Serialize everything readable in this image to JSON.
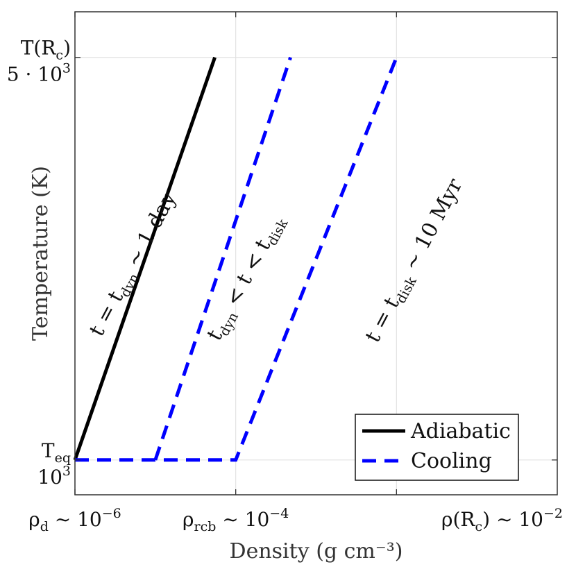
{
  "chart_data": {
    "type": "line",
    "xscale": "log",
    "yscale": "log",
    "xlabel": "Density (g cm⁻³)",
    "ylabel": "Temperature (K)",
    "xlim": [
      1e-06,
      1
    ],
    "ylim": [
      870,
      6000
    ],
    "grid": true,
    "legend_position": "bottom-right",
    "x_ticks": [
      {
        "value": 1e-06,
        "main": "ρ",
        "sub": "d",
        "rest": " ∼ 10",
        "sup": "−6"
      },
      {
        "value": 0.0001,
        "main": "ρ",
        "sub": "rcb",
        "rest": " ∼ 10",
        "sup": "−4"
      },
      {
        "value": 0.01,
        "main": "ρ(R",
        "sub": "c",
        "rest": ") ∼ 10",
        "sup": "−2"
      }
    ],
    "y_ticks": [
      {
        "value": 5000,
        "top_main": "T(R",
        "top_sub": "c",
        "top_rest": ")",
        "bottom": "5 · 10",
        "bottom_sup": "3"
      },
      {
        "value": 1000,
        "top_main": "T",
        "top_sub": "eq",
        "top_rest": "",
        "bottom": "10",
        "bottom_sup": "3"
      }
    ],
    "series": [
      {
        "name": "Adiabatic",
        "color": "#000000",
        "style": "solid",
        "x": [
          1e-06,
          5.5e-05
        ],
        "y": [
          1000,
          5000
        ]
      },
      {
        "name": "Cooling",
        "color": "#0000ff",
        "style": "dashed",
        "x": [
          1e-06,
          1e-05,
          0.0001,
          0.01
        ],
        "y": [
          1000,
          1000,
          1000,
          5000
        ],
        "x_second": [
          1e-05,
          0.00048
        ],
        "y_second": [
          1000,
          5000
        ]
      }
    ],
    "annotations": [
      {
        "id": "t-dyn",
        "parts": [
          [
            "t = t",
            ""
          ],
          [
            "dyn",
            "sub"
          ],
          [
            " ∼ 1 day",
            ""
          ]
        ]
      },
      {
        "id": "t-mid",
        "parts": [
          [
            "t",
            ""
          ],
          [
            "dyn",
            "sub"
          ],
          [
            " < t < t",
            ""
          ],
          [
            "disk",
            "sub"
          ]
        ]
      },
      {
        "id": "t-disk",
        "parts": [
          [
            "t = t",
            ""
          ],
          [
            "disk",
            "sub"
          ],
          [
            " ∼ 10 Myr",
            ""
          ]
        ]
      }
    ],
    "legend": [
      {
        "label": "Adiabatic",
        "color": "#000000",
        "style": "solid"
      },
      {
        "label": "Cooling",
        "color": "#0000ff",
        "style": "dashed"
      }
    ]
  }
}
